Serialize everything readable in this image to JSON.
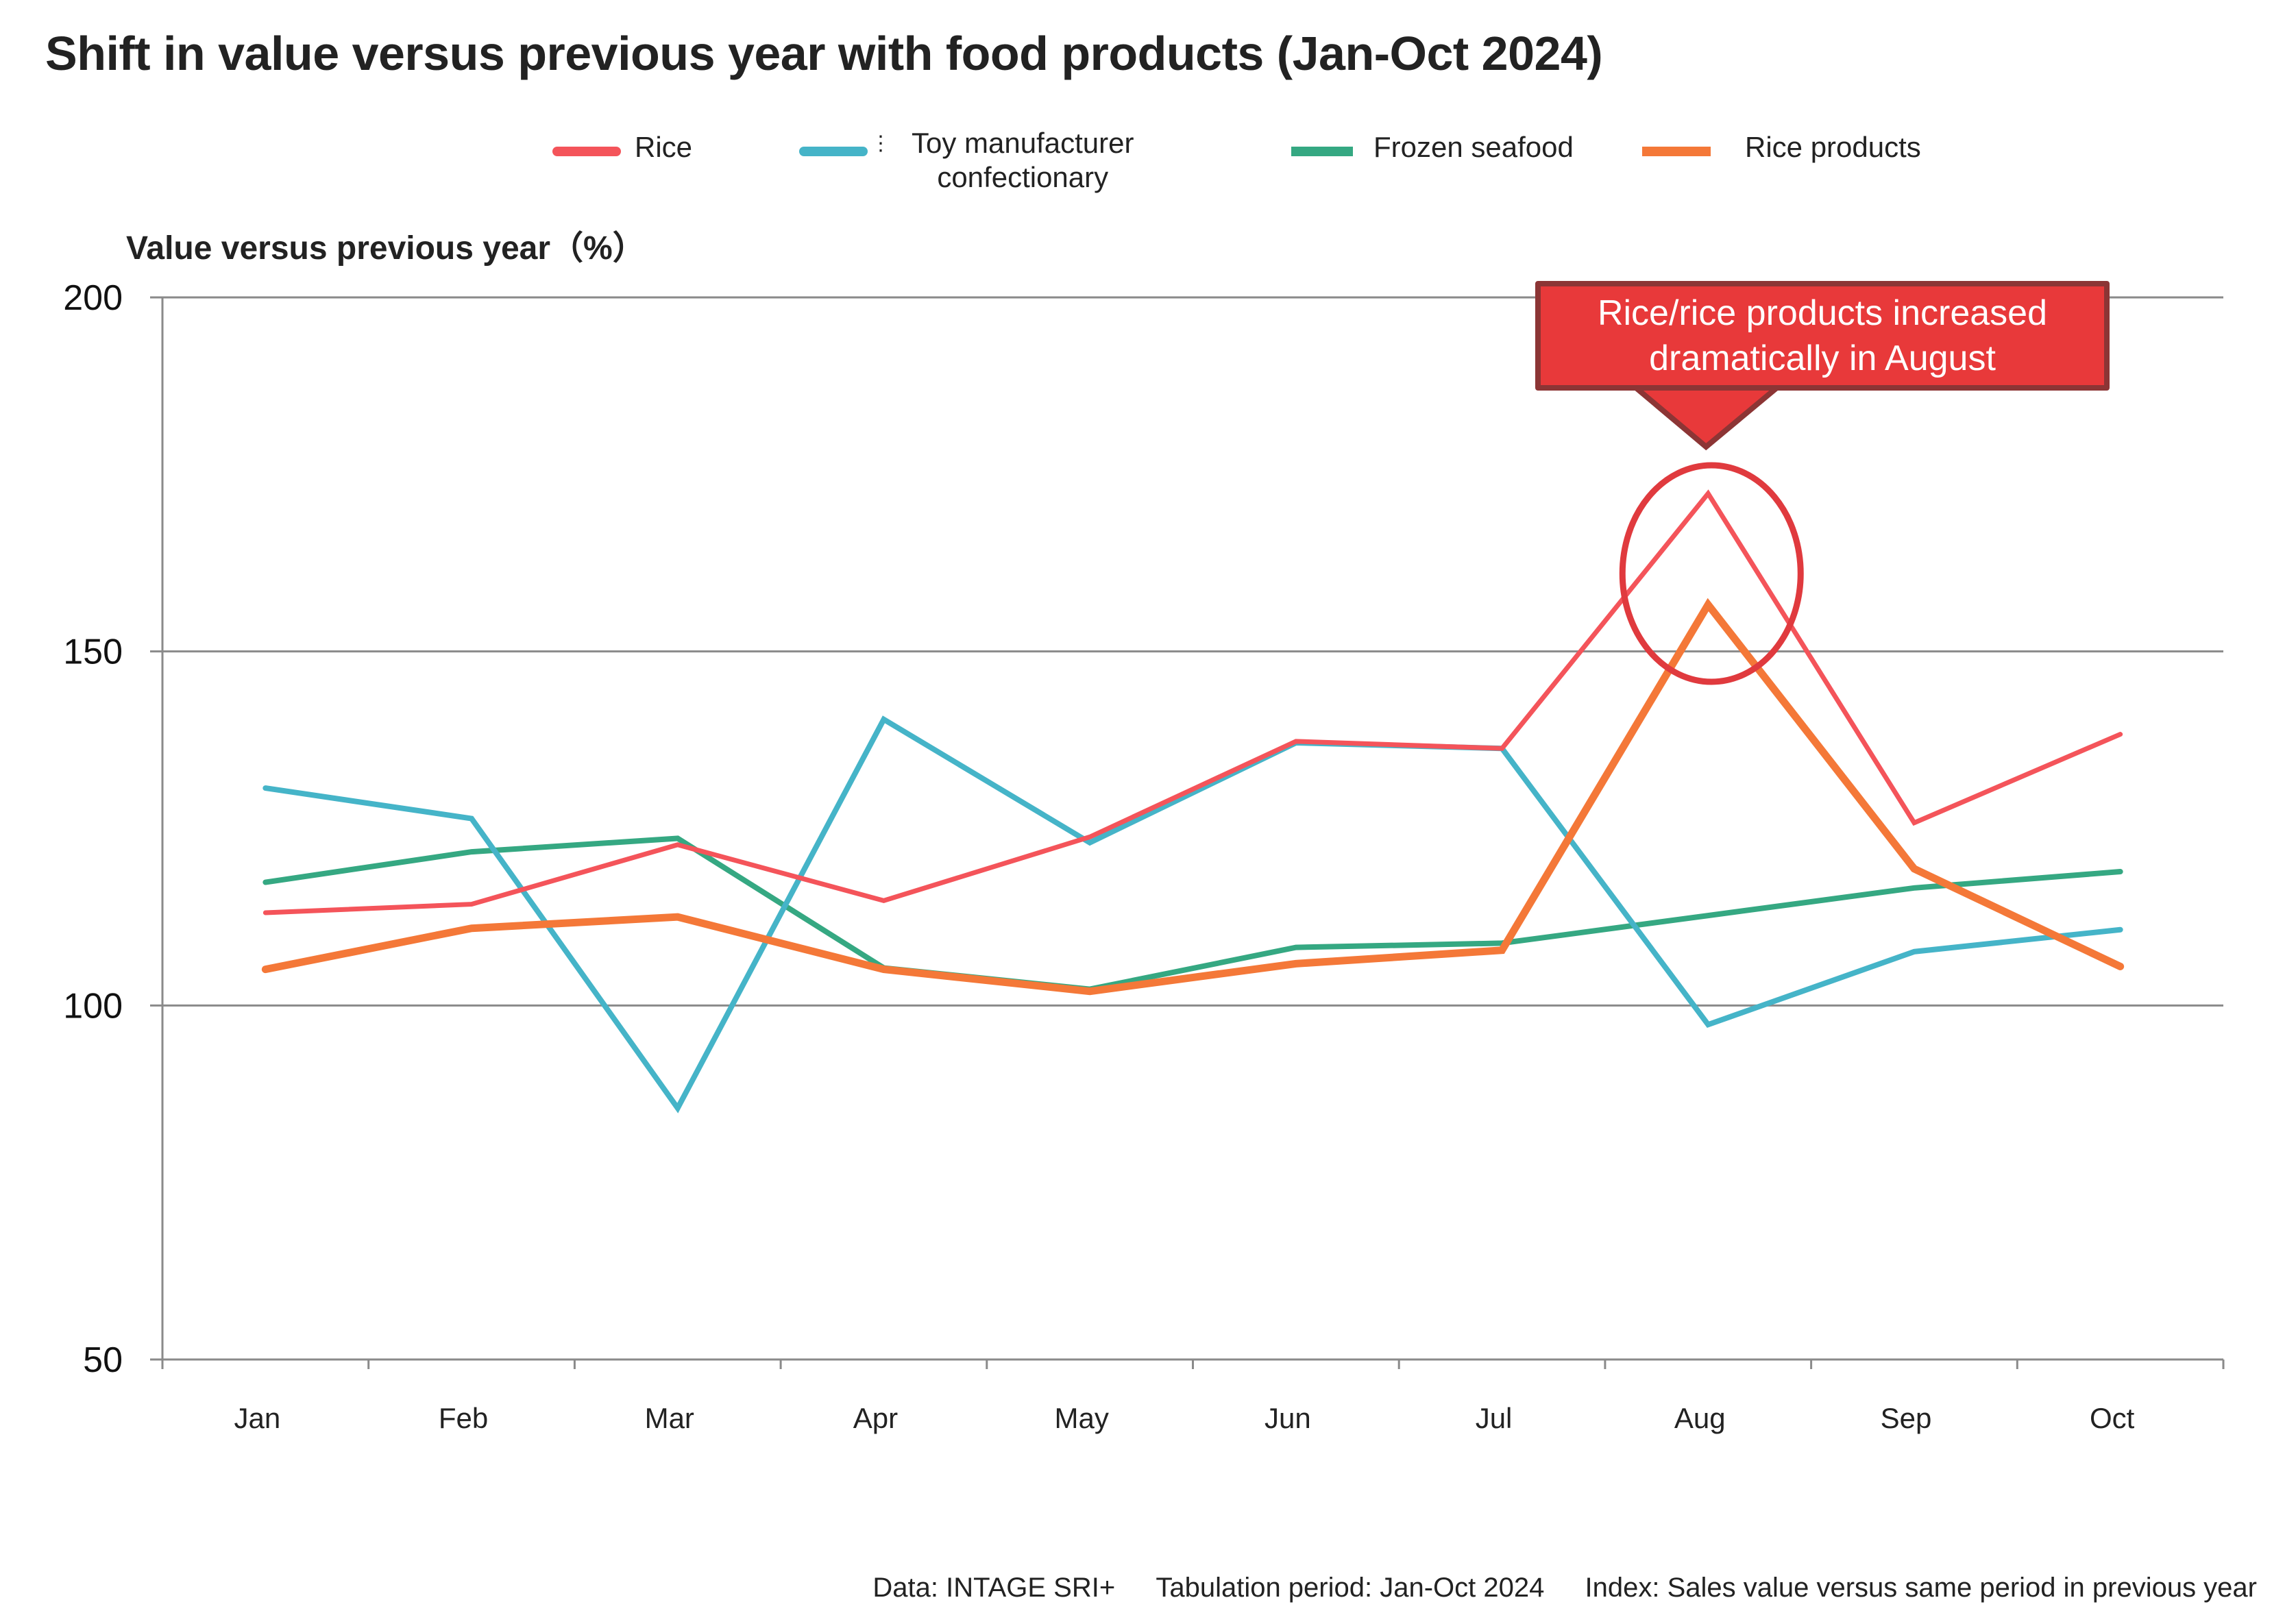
{
  "title": "Shift in value versus previous year with food products (Jan-Oct 2024)",
  "legend": [
    {
      "label": "Rice",
      "color": "#f4545a"
    },
    {
      "label_line1": "Toy manufacturer",
      "label_line2": "confectionary",
      "color": "#45b4c8"
    },
    {
      "label": "Frozen seafood",
      "color": "#35a882"
    },
    {
      "label": "Rice products",
      "color": "#f47838"
    }
  ],
  "legend_stray_mark": "⋮",
  "y_axis_label": "Value versus previous year（%）",
  "callout": {
    "line1": "Rice/rice products increased",
    "line2": "dramatically in August",
    "fill": "#e8393a",
    "border": "#8c3535",
    "highlight_month": "Aug"
  },
  "footer": {
    "data_source": "Data: INTAGE SRI+",
    "period": "Tabulation period: Jan-Oct 2024",
    "index": "Index: Sales value versus same period in previous year"
  },
  "chart_data": {
    "type": "line",
    "title": "Shift in value versus previous year with food products (Jan-Oct 2024)",
    "xlabel": "",
    "ylabel": "Value versus previous year（%）",
    "categories": [
      "Jan",
      "Feb",
      "Mar",
      "Apr",
      "May",
      "Jun",
      "Jul",
      "Aug",
      "Sep",
      "Oct"
    ],
    "ylim": [
      50,
      200
    ],
    "yticks": [
      50,
      100,
      150,
      200
    ],
    "grid": true,
    "legend_position": "top",
    "series": [
      {
        "name": "Rice",
        "color": "#f4545a",
        "values": [
          113.1,
          114.3,
          122.7,
          114.8,
          123.8,
          137.3,
          136.3,
          172.3,
          125.8,
          138.3
        ]
      },
      {
        "name": "Toy manufacturer confectionary",
        "color": "#45b4c8",
        "values": [
          130.7,
          126.4,
          85.5,
          140.4,
          123.0,
          137.1,
          136.3,
          97.3,
          107.6,
          110.7
        ]
      },
      {
        "name": "Frozen seafood",
        "color": "#35a882",
        "values": [
          117.4,
          121.7,
          123.6,
          105.3,
          102.3,
          108.2,
          108.8,
          112.7,
          116.6,
          118.9
        ]
      },
      {
        "name": "Rice products",
        "color": "#f47838",
        "values": [
          105.1,
          110.9,
          112.5,
          105.1,
          102.0,
          105.9,
          107.8,
          156.6,
          119.3,
          105.5
        ]
      }
    ]
  }
}
